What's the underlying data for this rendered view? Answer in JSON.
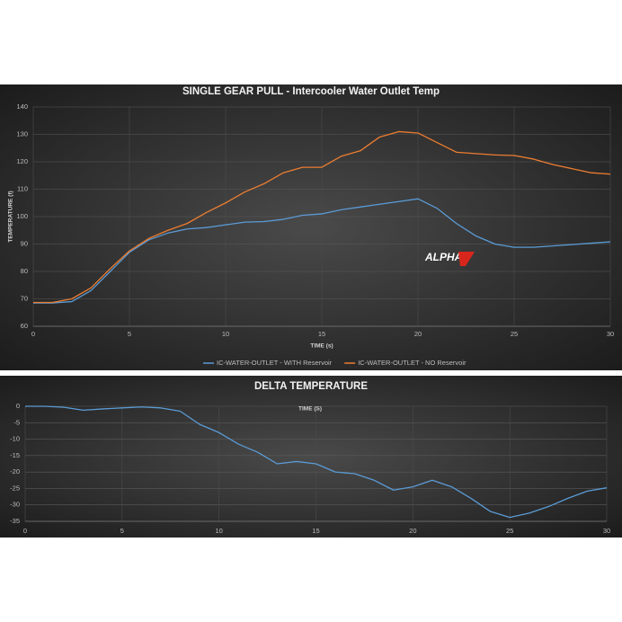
{
  "chart_data": [
    {
      "type": "line",
      "title": "SINGLE GEAR PULL - Intercooler Water Outlet Temp",
      "x_label": "TIME (s)",
      "y_label": "TEMPERATURE (f)",
      "logo": "ALPHA",
      "x": [
        0,
        1,
        2,
        3,
        4,
        5,
        6,
        7,
        8,
        9,
        10,
        11,
        12,
        13,
        14,
        15,
        16,
        17,
        18,
        19,
        20,
        21,
        22,
        23,
        24,
        25,
        26,
        27,
        28,
        29,
        30
      ],
      "series": [
        {
          "name": "IC-WATER-OUTLET - WITH Reservoir",
          "color": "#5b9bd5",
          "values": [
            68.5,
            68.5,
            69,
            73,
            80,
            87,
            91.5,
            94,
            95.5,
            96,
            97,
            98,
            98.2,
            99,
            100.5,
            101,
            102.5,
            103.5,
            104.5,
            105.5,
            106.5,
            103,
            97.5,
            93,
            90,
            88.8,
            88.8,
            89.3,
            89.8,
            90.3,
            90.8
          ]
        },
        {
          "name": "IC-WATER-OUTLET - NO Reservoir",
          "color": "#ed7d31",
          "values": [
            68.7,
            68.7,
            70,
            74,
            81,
            87.5,
            92,
            95,
            97.5,
            101.5,
            105,
            109,
            112,
            116,
            118,
            118,
            122,
            124,
            129,
            131,
            130.5,
            127,
            123.5,
            123,
            122.5,
            122.3,
            121,
            119,
            117.5,
            116,
            115.5
          ]
        }
      ],
      "xlim": [
        0,
        30
      ],
      "xticks": [
        0,
        5,
        10,
        15,
        20,
        25,
        30
      ],
      "ylim": [
        60,
        140
      ],
      "yticks": [
        60,
        70,
        80,
        90,
        100,
        110,
        120,
        130,
        140
      ],
      "grid": true,
      "legend": "bottom"
    },
    {
      "type": "line",
      "title": "DELTA TEMPERATURE",
      "x_label": "TIME (S)",
      "x": [
        0,
        1,
        2,
        3,
        4,
        5,
        6,
        7,
        8,
        9,
        10,
        11,
        12,
        13,
        14,
        15,
        16,
        17,
        18,
        19,
        20,
        21,
        22,
        23,
        24,
        25,
        26,
        27,
        28,
        29,
        30
      ],
      "values": [
        0,
        0,
        -0.3,
        -1.2,
        -0.8,
        -0.5,
        -0.2,
        -0.5,
        -1.5,
        -5.5,
        -8,
        -11.5,
        -14,
        -17.5,
        -16.8,
        -17.5,
        -20,
        -20.5,
        -22.5,
        -25.5,
        -24.5,
        -22.5,
        -24.5,
        -28,
        -32,
        -33.8,
        -32.5,
        -30.5,
        -28,
        -25.8,
        -24.8
      ],
      "color": "#5b9bd5",
      "xlim": [
        0,
        30
      ],
      "xticks": [
        0,
        5,
        10,
        15,
        20,
        25,
        30
      ],
      "ylim": [
        -35,
        0
      ],
      "yticks": [
        0,
        -5,
        -10,
        -15,
        -20,
        -25,
        -30,
        -35
      ],
      "grid": true
    }
  ]
}
